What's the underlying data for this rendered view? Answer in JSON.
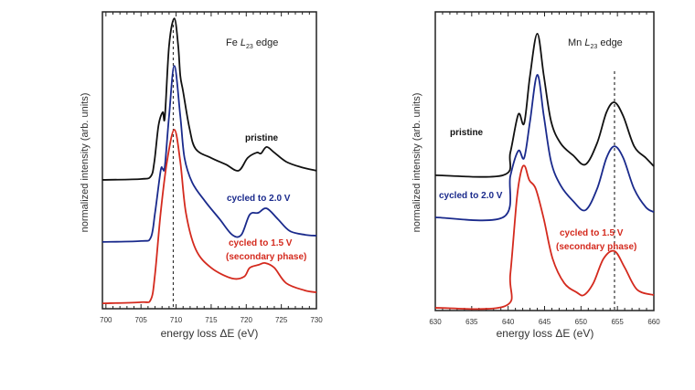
{
  "chart_data": [
    {
      "type": "line",
      "title_parts": {
        "element": "Fe",
        "edge_letter": "L",
        "edge_sub": "23",
        "edge_word": "edge"
      },
      "xlabel": "energy loss  ΔE (eV)",
      "ylabel": "normalized intensity (arb. units)",
      "xlim": [
        699.5,
        730
      ],
      "ylim": [
        0,
        1
      ],
      "xticks": [
        700,
        705,
        710,
        715,
        720,
        725,
        730
      ],
      "y_tick_labels": false,
      "grid": false,
      "reference_line_x": 709.6,
      "series": [
        {
          "name": "pristine",
          "color": "#111111",
          "points": [
            [
              699.5,
              0.434
            ],
            [
              705,
              0.437
            ],
            [
              706.4,
              0.446
            ],
            [
              706.9,
              0.495
            ],
            [
              707.5,
              0.618
            ],
            [
              708.1,
              0.662
            ],
            [
              708.4,
              0.646
            ],
            [
              709.0,
              0.886
            ],
            [
              709.75,
              0.978
            ],
            [
              710.3,
              0.886
            ],
            [
              710.6,
              0.785
            ],
            [
              711,
              0.732
            ],
            [
              711.9,
              0.609
            ],
            [
              712.8,
              0.538
            ],
            [
              715,
              0.508
            ],
            [
              717.1,
              0.486
            ],
            [
              718.9,
              0.465
            ],
            [
              720.2,
              0.508
            ],
            [
              721.5,
              0.526
            ],
            [
              722.1,
              0.523
            ],
            [
              722.9,
              0.545
            ],
            [
              724,
              0.526
            ],
            [
              725.7,
              0.495
            ],
            [
              727.8,
              0.477
            ],
            [
              730,
              0.465
            ]
          ]
        },
        {
          "name": "cycled to 2.0 V",
          "color": "#1a2a8c",
          "points": [
            [
              699.5,
              0.225
            ],
            [
              705,
              0.228
            ],
            [
              706.4,
              0.24
            ],
            [
              707,
              0.323
            ],
            [
              707.8,
              0.465
            ],
            [
              708.1,
              0.471
            ],
            [
              708.4,
              0.48
            ],
            [
              709,
              0.649
            ],
            [
              709.75,
              0.818
            ],
            [
              710.6,
              0.649
            ],
            [
              711.2,
              0.508
            ],
            [
              712.3,
              0.425
            ],
            [
              714.1,
              0.363
            ],
            [
              716.2,
              0.302
            ],
            [
              718,
              0.249
            ],
            [
              719.3,
              0.249
            ],
            [
              720.5,
              0.317
            ],
            [
              721.7,
              0.323
            ],
            [
              722.9,
              0.338
            ],
            [
              724.5,
              0.302
            ],
            [
              726.2,
              0.262
            ],
            [
              728.4,
              0.249
            ],
            [
              730,
              0.246
            ]
          ]
        },
        {
          "name": "cycled to 1.5 V (secondary phase)",
          "color": "#d42a1e",
          "points": [
            [
              699.5,
              0.018
            ],
            [
              705,
              0.022
            ],
            [
              706.4,
              0.031
            ],
            [
              707,
              0.117
            ],
            [
              707.8,
              0.323
            ],
            [
              708.7,
              0.495
            ],
            [
              709.75,
              0.603
            ],
            [
              710.6,
              0.495
            ],
            [
              711.4,
              0.323
            ],
            [
              712.8,
              0.2
            ],
            [
              715,
              0.138
            ],
            [
              718,
              0.102
            ],
            [
              719.7,
              0.108
            ],
            [
              720.5,
              0.138
            ],
            [
              721.8,
              0.148
            ],
            [
              722.7,
              0.154
            ],
            [
              724,
              0.138
            ],
            [
              725.7,
              0.086
            ],
            [
              728.3,
              0.062
            ],
            [
              730,
              0.055
            ]
          ]
        }
      ],
      "annotations": {
        "pristine": "pristine",
        "cycled_2": "cycled to 2.0 V",
        "cycled_15": "cycled to 1.5 V",
        "secondary": "(secondary phase)"
      }
    },
    {
      "type": "line",
      "title_parts": {
        "element": "Mn",
        "edge_letter": "L",
        "edge_sub": "23",
        "edge_word": "edge"
      },
      "xlabel": "energy loss  ΔE (eV)",
      "ylabel": "normalized intensity (arb. units)",
      "xlim": [
        630,
        660
      ],
      "ylim": [
        0,
        1
      ],
      "xticks": [
        630,
        635,
        640,
        645,
        650,
        655,
        660
      ],
      "y_tick_labels": false,
      "grid": false,
      "reference_line_x": 654.6,
      "series": [
        {
          "name": "pristine",
          "color": "#111111",
          "points": [
            [
              630,
              0.453
            ],
            [
              639.3,
              0.453
            ],
            [
              640.3,
              0.529
            ],
            [
              641.4,
              0.657
            ],
            [
              642.2,
              0.627
            ],
            [
              643,
              0.786
            ],
            [
              644,
              0.927
            ],
            [
              644.9,
              0.786
            ],
            [
              645.9,
              0.633
            ],
            [
              647.2,
              0.56
            ],
            [
              648.9,
              0.52
            ],
            [
              650.6,
              0.489
            ],
            [
              652.2,
              0.56
            ],
            [
              653.5,
              0.664
            ],
            [
              654.6,
              0.697
            ],
            [
              655.8,
              0.651
            ],
            [
              657.3,
              0.55
            ],
            [
              658.9,
              0.511
            ],
            [
              660,
              0.483
            ]
          ]
        },
        {
          "name": "cycled to 2.0 V",
          "color": "#1a2a8c",
          "points": [
            [
              630,
              0.312
            ],
            [
              639.3,
              0.312
            ],
            [
              640.3,
              0.45
            ],
            [
              641.4,
              0.535
            ],
            [
              642.2,
              0.511
            ],
            [
              643,
              0.633
            ],
            [
              644,
              0.789
            ],
            [
              644.9,
              0.651
            ],
            [
              645.9,
              0.498
            ],
            [
              647.2,
              0.419
            ],
            [
              648.9,
              0.367
            ],
            [
              650.6,
              0.336
            ],
            [
              652.2,
              0.407
            ],
            [
              653.5,
              0.511
            ],
            [
              654.6,
              0.55
            ],
            [
              655.8,
              0.511
            ],
            [
              657.3,
              0.407
            ],
            [
              658.9,
              0.346
            ],
            [
              660,
              0.33
            ]
          ]
        },
        {
          "name": "cycled to 1.5 V (secondary phase)",
          "color": "#d42a1e",
          "points": [
            [
              630,
              0.009
            ],
            [
              639.6,
              0.015
            ],
            [
              640.3,
              0.122
            ],
            [
              641.2,
              0.376
            ],
            [
              641.8,
              0.468
            ],
            [
              642.3,
              0.483
            ],
            [
              642.9,
              0.437
            ],
            [
              643.8,
              0.407
            ],
            [
              644.9,
              0.306
            ],
            [
              646.1,
              0.174
            ],
            [
              647.7,
              0.092
            ],
            [
              649.4,
              0.061
            ],
            [
              650.4,
              0.052
            ],
            [
              651.7,
              0.092
            ],
            [
              653.1,
              0.174
            ],
            [
              654.6,
              0.199
            ],
            [
              656,
              0.144
            ],
            [
              657.7,
              0.07
            ],
            [
              660,
              0.052
            ]
          ]
        }
      ],
      "annotations": {
        "pristine": "pristine",
        "cycled_2": "cycled to 2.0 V",
        "cycled_15": "cycled to 1.5 V",
        "secondary": "(secondary phase)"
      }
    }
  ]
}
